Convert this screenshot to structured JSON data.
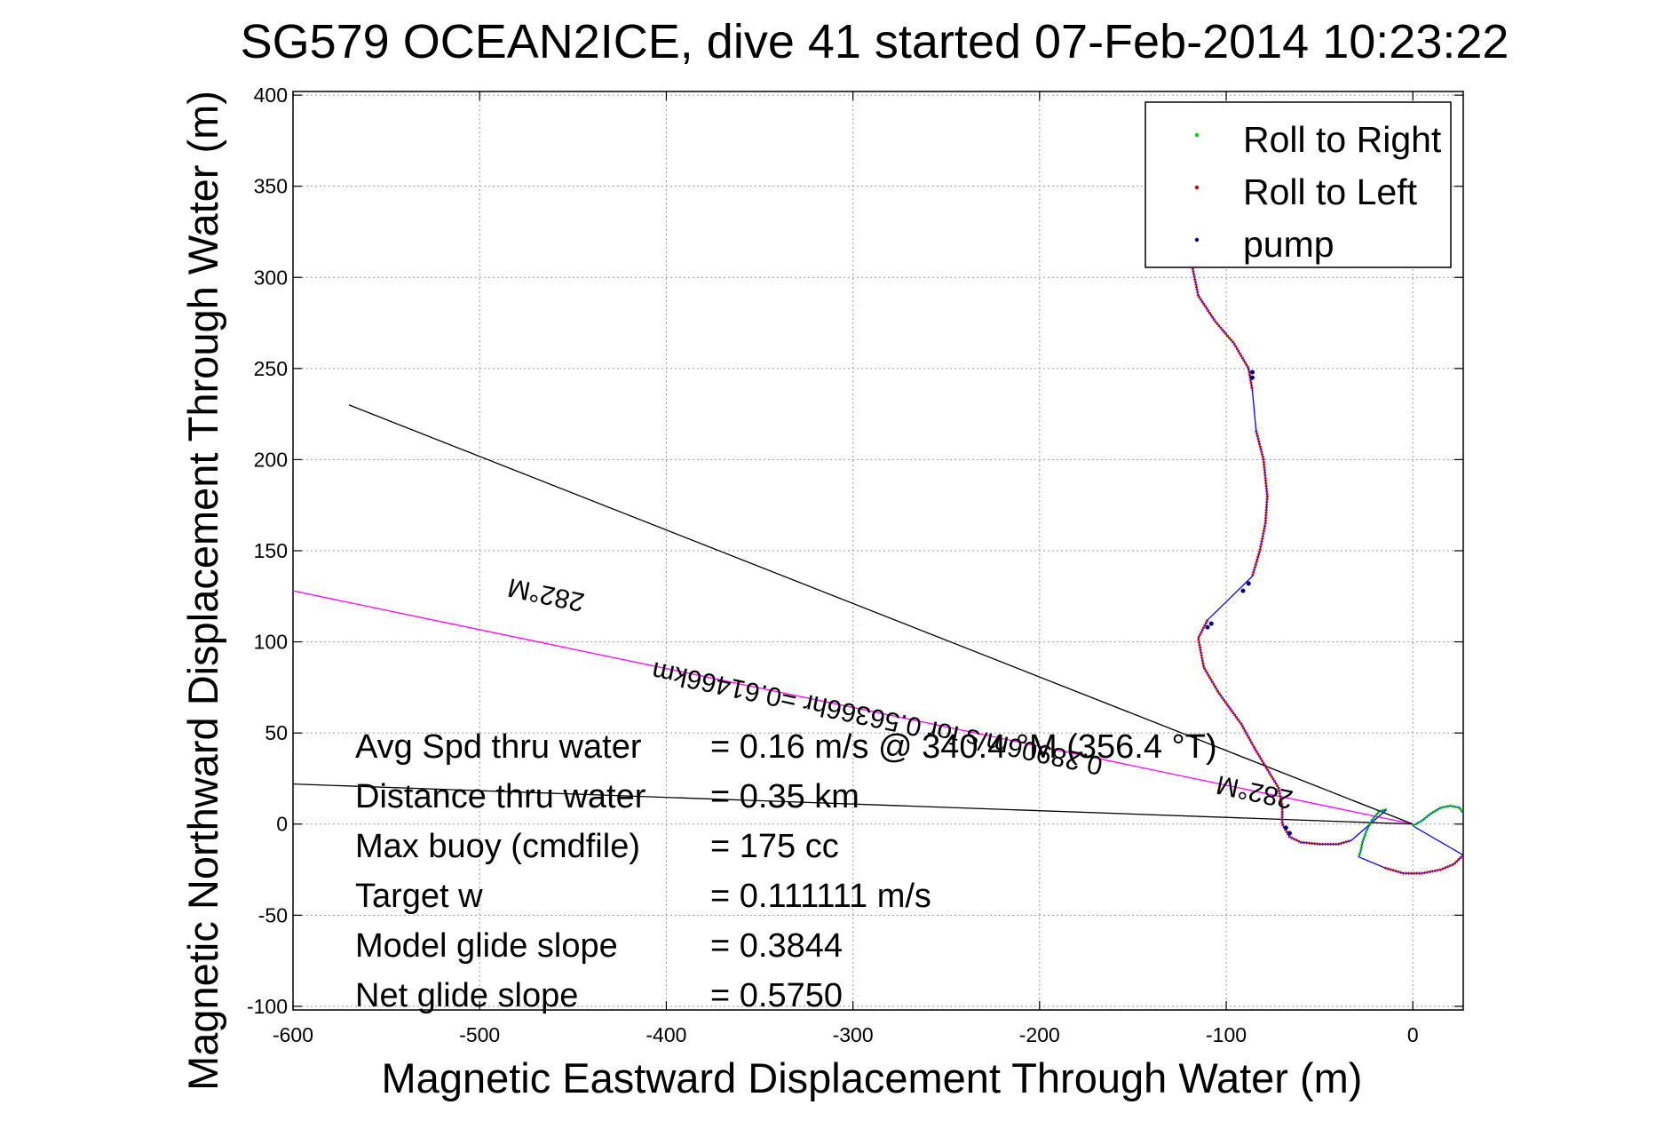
{
  "chart_data": {
    "type": "line",
    "title": "SG579 OCEAN2ICE, dive 41 started 07-Feb-2014 10:23:22",
    "xlabel": "Magnetic Eastward Displacement Through Water (m)",
    "ylabel": "Magnetic Northward Displacement Through Water (m)",
    "xlim": [
      -600,
      27
    ],
    "ylim": [
      -102,
      402
    ],
    "xticks": [
      -600,
      -500,
      -400,
      -300,
      -200,
      -100,
      0
    ],
    "yticks": [
      400,
      350,
      300,
      250,
      200,
      150,
      100,
      50,
      0,
      -50,
      -100
    ],
    "grid": true,
    "legend": {
      "position": "top-right",
      "entries": [
        {
          "label": "Roll to Right",
          "color": "#00cc00"
        },
        {
          "label": "Roll to Left",
          "color": "#cc0000"
        },
        {
          "label": "pump",
          "color": "#000080"
        }
      ]
    },
    "track_color": "#0000ff",
    "series": [
      {
        "name": "Roll to Right",
        "color": "#00cc00",
        "segments": [
          [
            [
              0,
              -1
            ],
            [
              5,
              2
            ],
            [
              10,
              6
            ],
            [
              15,
              9
            ],
            [
              20,
              10
            ],
            [
              25,
              9
            ],
            [
              27,
              6
            ]
          ],
          [
            [
              -14,
              8
            ],
            [
              -18,
              7
            ],
            [
              -22,
              2
            ],
            [
              -25,
              -4
            ],
            [
              -27,
              -10
            ],
            [
              -28,
              -15
            ],
            [
              -29,
              -18
            ]
          ]
        ]
      },
      {
        "name": "Roll to Left",
        "color": "#cc0000",
        "segments": [
          [
            [
              -118,
              305
            ],
            [
              -115,
              290
            ],
            [
              -106,
              276
            ],
            [
              -96,
              264
            ],
            [
              -88,
              250
            ],
            [
              -86,
              238
            ]
          ],
          [
            [
              -84,
              216
            ],
            [
              -80,
              200
            ],
            [
              -78,
              180
            ],
            [
              -79,
              165
            ],
            [
              -82,
              150
            ],
            [
              -86,
              136
            ]
          ],
          [
            [
              -110,
              112
            ],
            [
              -115,
              102
            ],
            [
              -112,
              86
            ],
            [
              -104,
              72
            ],
            [
              -92,
              55
            ],
            [
              -85,
              42
            ],
            [
              -78,
              30
            ],
            [
              -72,
              20
            ],
            [
              -70,
              10
            ],
            [
              -70,
              0
            ],
            [
              -66,
              -7
            ],
            [
              -60,
              -10
            ],
            [
              -50,
              -11
            ],
            [
              -40,
              -11
            ],
            [
              -33,
              -9
            ]
          ],
          [
            [
              -15,
              -24
            ],
            [
              -5,
              -27
            ],
            [
              5,
              -27
            ],
            [
              15,
              -25
            ],
            [
              22,
              -22
            ],
            [
              27,
              -17
            ]
          ]
        ]
      },
      {
        "name": "pump",
        "color": "#000080",
        "points": [
          [
            -86,
            248
          ],
          [
            -86,
            245
          ],
          [
            -88,
            132
          ],
          [
            -91,
            128
          ],
          [
            -108,
            110
          ],
          [
            -110,
            108
          ],
          [
            -68,
            -2
          ],
          [
            -66,
            -5
          ]
        ]
      }
    ],
    "annotations": [
      {
        "text": "282°M",
        "kind": "heading label (upside down)"
      },
      {
        "text": "0.28906m/s for 0.56366hr =0.61466km",
        "kind": "segment label (upside down)"
      },
      {
        "text": "282°M",
        "kind": "current heading label (upside down)"
      }
    ],
    "heading_lines": [
      {
        "from": [
          0,
          0
        ],
        "to": [
          -600,
          128
        ],
        "color": "#ff00ff",
        "name": "282°M heading"
      },
      {
        "from": [
          0,
          0
        ],
        "to": [
          -570,
          230
        ],
        "color": "#000000",
        "name": "current vector"
      },
      {
        "from": [
          0,
          0
        ],
        "to": [
          -600,
          22
        ],
        "color": "#000000",
        "name": "net displacement"
      }
    ]
  },
  "stats": [
    {
      "label": "Avg Spd thru water",
      "value": "=  0.16 m/s @ 340.4 °M (356.4 °T)"
    },
    {
      "label": "Distance thru water",
      "value": "=  0.35 km"
    },
    {
      "label": "Max buoy (cmdfile)",
      "value": "= 175 cc"
    },
    {
      "label": "Target w",
      "value": "= 0.111111 m/s"
    },
    {
      "label": "Model glide slope",
      "value": "= 0.3844"
    },
    {
      "label": "Net glide slope",
      "value": "= 0.5750"
    }
  ]
}
